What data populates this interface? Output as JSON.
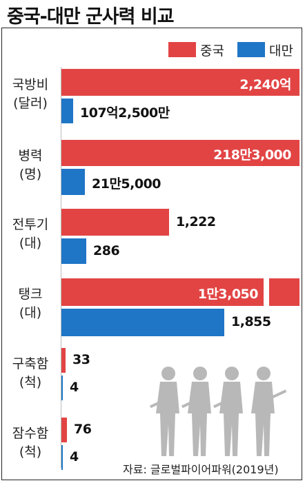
{
  "title": "중국-대만 군사력 비교",
  "source": "자료: 글로벌파이어파워(2019년)",
  "colors": {
    "china": "#e24444",
    "taiwan": "#1f75c6"
  },
  "legend": [
    {
      "label": "중국",
      "color": "#e24444"
    },
    {
      "label": "대만",
      "color": "#1f75c6"
    }
  ],
  "chart_data": {
    "type": "bar",
    "orientation": "horizontal",
    "title": "중국-대만 군사력 비교",
    "categories": [
      {
        "name": "국방비",
        "unit": "(달러)"
      },
      {
        "name": "병력",
        "unit": "(명)"
      },
      {
        "name": "전투기",
        "unit": "(대)"
      },
      {
        "name": "탱크",
        "unit": "(대)"
      },
      {
        "name": "구축함",
        "unit": "(척)"
      },
      {
        "name": "잠수함",
        "unit": "(척)"
      }
    ],
    "series": [
      {
        "name": "중국",
        "values": [
          2240,
          2183000,
          1222,
          13050,
          33,
          76
        ],
        "labels": [
          "2,240억",
          "218만3,000",
          "1,222",
          "1만3,050",
          "33",
          "76"
        ]
      },
      {
        "name": "대만",
        "values": [
          107.25,
          215000,
          286,
          1855,
          4,
          4
        ],
        "labels": [
          "107억2,500만",
          "21만5,000",
          "286",
          "1,855",
          "4",
          "4"
        ]
      }
    ],
    "legend_position": "top-right",
    "grid": false,
    "note": "China bars for 국방비, 병력 and 탱크 are truncated at the right edge (탱크 bar shows a break)"
  }
}
